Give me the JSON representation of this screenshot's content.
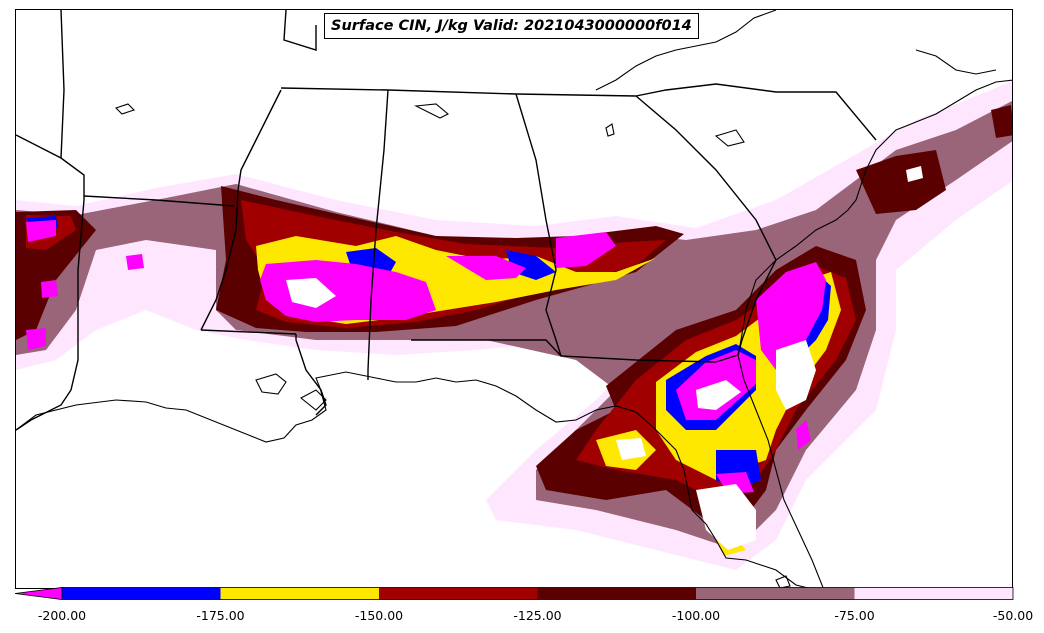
{
  "title": "Surface CIN, J/kg Valid: 2021043000000f014",
  "colorbar": {
    "bins": [
      {
        "from": -200,
        "to": -175,
        "color": "#0000ff"
      },
      {
        "from": -175,
        "to": -150,
        "color": "#ffe800"
      },
      {
        "from": -150,
        "to": -125,
        "color": "#a00000"
      },
      {
        "from": -125,
        "to": -100,
        "color": "#5a0000"
      },
      {
        "from": -100,
        "to": -75,
        "color": "#9a6479"
      },
      {
        "from": -75,
        "to": -50,
        "color": "#ffe6ff"
      }
    ],
    "under_color": "#ff00ff",
    "tick_labels": [
      "-200.00",
      "-175.00",
      "-150.00",
      "-125.00",
      "-100.00",
      "-75.00",
      "-50.00"
    ]
  },
  "colors": {
    "lightest": "#ffe6ff",
    "mauve": "#9a6479",
    "darkred": "#5a0000",
    "red": "#a00000",
    "yellow": "#ffe800",
    "blue": "#0000ff",
    "magenta": "#ff00ff"
  }
}
